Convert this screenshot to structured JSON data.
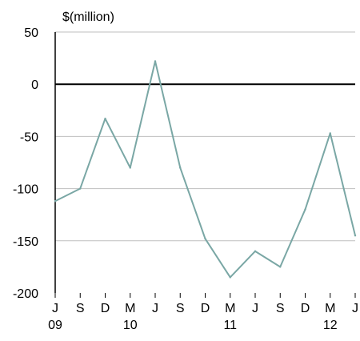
{
  "chart_data": {
    "type": "line",
    "unit_label": "$(million)",
    "ylim": [
      -200,
      50
    ],
    "y_ticks": [
      50,
      0,
      -50,
      -100,
      -150,
      -200
    ],
    "x_month_labels": [
      "J",
      "S",
      "D",
      "M",
      "J",
      "S",
      "D",
      "M",
      "J",
      "S",
      "D",
      "M",
      "J"
    ],
    "x_year_labels": [
      {
        "label": "09",
        "index": 0
      },
      {
        "label": "10",
        "index": 3
      },
      {
        "label": "11",
        "index": 7
      },
      {
        "label": "12",
        "index": 11
      }
    ],
    "series": [
      {
        "values": [
          -112,
          -100,
          -33,
          -80,
          22,
          -80,
          -148,
          -185,
          -160,
          -175,
          -120,
          -47,
          -145
        ],
        "color": "#7aa7a5"
      }
    ],
    "zero_line": true,
    "grid": true,
    "grid_color": "#bfbfbf",
    "axis_color": "#000000"
  }
}
